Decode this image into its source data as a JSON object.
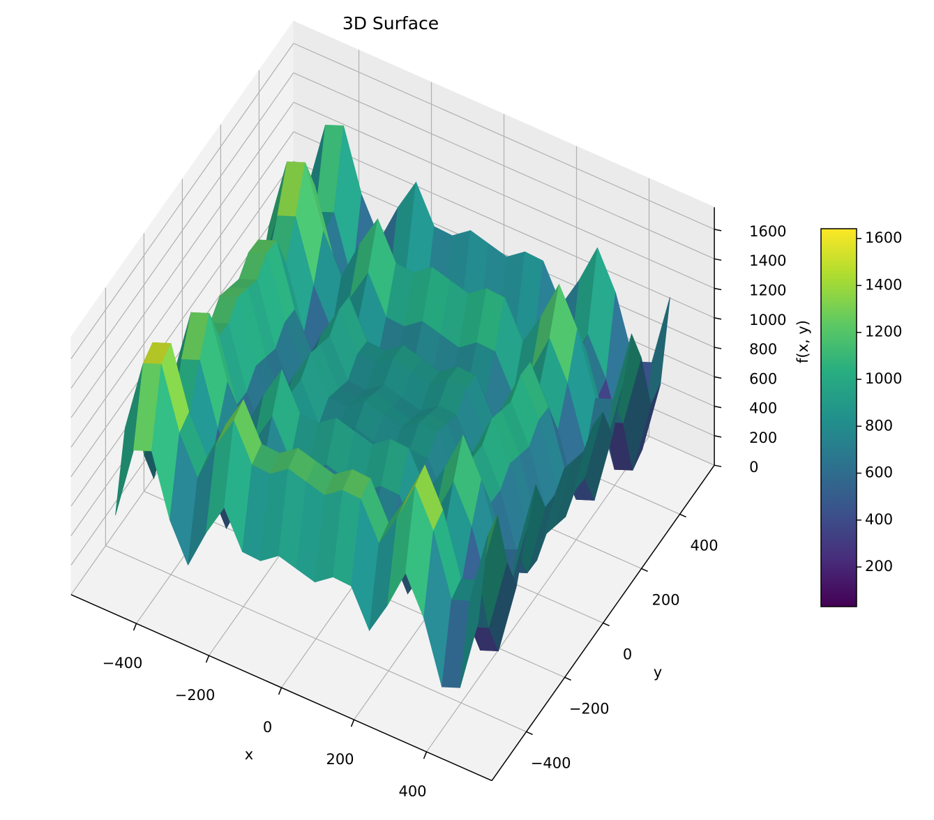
{
  "chart_data": {
    "type": "surface",
    "title": "3D Surface",
    "x_label": "x",
    "y_label": "y",
    "z_label": "f(x, y)",
    "x": [
      -500,
      -450,
      -400,
      -350,
      -300,
      -250,
      -200,
      -150,
      -100,
      -50,
      0,
      50,
      100,
      150,
      200,
      250,
      300,
      350,
      400,
      450,
      500
    ],
    "y": [
      -500,
      -450,
      -400,
      -350,
      -300,
      -250,
      -200,
      -150,
      -100,
      -50,
      0,
      50,
      100,
      150,
      200,
      250,
      300,
      350,
      400,
      450,
      500
    ],
    "z": [
      [
        478,
        974,
        1023,
        609,
        358,
        632,
        858,
        611,
        604,
        693,
        658,
        623,
        712,
        705,
        458,
        684,
        958,
        707,
        293,
        342,
        839
      ],
      [
        974,
        1470,
        1519,
        1105,
        854,
        1128,
        1354,
        1107,
        1100,
        1189,
        1154,
        1119,
        1208,
        1201,
        954,
        1180,
        1454,
        1203,
        789,
        838,
        1335
      ],
      [
        1023,
        1519,
        1568,
        1154,
        903,
        1177,
        1403,
        1156,
        1149,
        1238,
        1203,
        1168,
        1257,
        1250,
        1003,
        1229,
        1503,
        1252,
        838,
        887,
        1384
      ],
      [
        609,
        1105,
        1154,
        740,
        489,
        763,
        989,
        742,
        735,
        824,
        789,
        754,
        843,
        836,
        589,
        815,
        1089,
        838,
        424,
        473,
        970
      ],
      [
        358,
        854,
        903,
        489,
        238,
        512,
        738,
        491,
        484,
        573,
        538,
        503,
        592,
        585,
        338,
        564,
        838,
        587,
        173,
        222,
        719
      ],
      [
        632,
        1128,
        1177,
        763,
        512,
        786,
        1012,
        765,
        758,
        847,
        812,
        777,
        866,
        859,
        612,
        838,
        1112,
        861,
        447,
        496,
        993
      ],
      [
        858,
        1354,
        1403,
        989,
        738,
        1012,
        1238,
        991,
        984,
        1073,
        1038,
        1003,
        1092,
        1085,
        838,
        1064,
        1338,
        1087,
        673,
        722,
        1219
      ],
      [
        611,
        1107,
        1156,
        742,
        491,
        765,
        991,
        744,
        737,
        826,
        791,
        756,
        845,
        838,
        591,
        817,
        1091,
        840,
        426,
        475,
        972
      ],
      [
        604,
        1100,
        1149,
        735,
        484,
        758,
        984,
        737,
        730,
        819,
        784,
        749,
        838,
        831,
        584,
        810,
        1084,
        833,
        419,
        468,
        965
      ],
      [
        693,
        1189,
        1238,
        824,
        573,
        847,
        1073,
        826,
        819,
        908,
        873,
        838,
        927,
        920,
        673,
        899,
        1173,
        922,
        508,
        557,
        1054
      ],
      [
        658,
        1154,
        1203,
        789,
        538,
        812,
        1038,
        791,
        784,
        873,
        838,
        803,
        892,
        885,
        638,
        864,
        1138,
        887,
        473,
        522,
        1019
      ],
      [
        623,
        1119,
        1168,
        754,
        503,
        777,
        1003,
        756,
        749,
        838,
        803,
        768,
        857,
        850,
        603,
        829,
        1103,
        852,
        438,
        487,
        984
      ],
      [
        712,
        1208,
        1257,
        843,
        592,
        866,
        1092,
        845,
        838,
        927,
        892,
        857,
        946,
        939,
        692,
        918,
        1192,
        941,
        527,
        576,
        1073
      ],
      [
        705,
        1201,
        1250,
        836,
        585,
        859,
        1085,
        838,
        831,
        920,
        885,
        850,
        939,
        932,
        685,
        911,
        1185,
        934,
        520,
        569,
        1066
      ],
      [
        458,
        954,
        1003,
        589,
        338,
        612,
        838,
        591,
        584,
        673,
        638,
        603,
        692,
        685,
        438,
        664,
        938,
        687,
        273,
        322,
        819
      ],
      [
        684,
        1180,
        1229,
        815,
        564,
        838,
        1064,
        817,
        810,
        899,
        864,
        829,
        918,
        911,
        664,
        890,
        1164,
        913,
        499,
        548,
        1045
      ],
      [
        958,
        1454,
        1503,
        1089,
        838,
        1112,
        1338,
        1091,
        1084,
        1173,
        1138,
        1103,
        1192,
        1185,
        938,
        1164,
        1438,
        1187,
        773,
        822,
        1319
      ],
      [
        707,
        1203,
        1252,
        838,
        587,
        861,
        1087,
        840,
        833,
        922,
        887,
        852,
        941,
        934,
        687,
        913,
        1187,
        936,
        522,
        571,
        1068
      ],
      [
        293,
        789,
        838,
        424,
        173,
        447,
        673,
        426,
        419,
        508,
        473,
        438,
        527,
        520,
        273,
        499,
        773,
        522,
        108,
        157,
        654
      ],
      [
        342,
        838,
        887,
        473,
        222,
        496,
        722,
        475,
        468,
        557,
        522,
        487,
        576,
        569,
        322,
        548,
        822,
        571,
        157,
        206,
        703
      ],
      [
        839,
        1335,
        1384,
        970,
        719,
        993,
        1219,
        972,
        965,
        1054,
        1019,
        984,
        1073,
        1066,
        819,
        1045,
        1319,
        1068,
        654,
        703,
        1200
      ]
    ],
    "xlim": [
      -580,
      580
    ],
    "ylim": [
      -580,
      580
    ],
    "zlim": [
      0,
      1750
    ],
    "xticks": [
      {
        "value": -400,
        "label": "−400"
      },
      {
        "value": -200,
        "label": "−200"
      },
      0,
      200,
      400
    ],
    "yticks": [
      {
        "value": -400,
        "label": "−400"
      },
      {
        "value": -200,
        "label": "−200"
      },
      0,
      200,
      400
    ],
    "zticks": [
      0,
      200,
      400,
      600,
      800,
      1000,
      1200,
      1400,
      1600
    ],
    "colormap": "viridis",
    "clim": [
      31,
      1642
    ],
    "colorbar_ticks": [
      200,
      400,
      600,
      800,
      1000,
      1200,
      1400,
      1600
    ]
  }
}
